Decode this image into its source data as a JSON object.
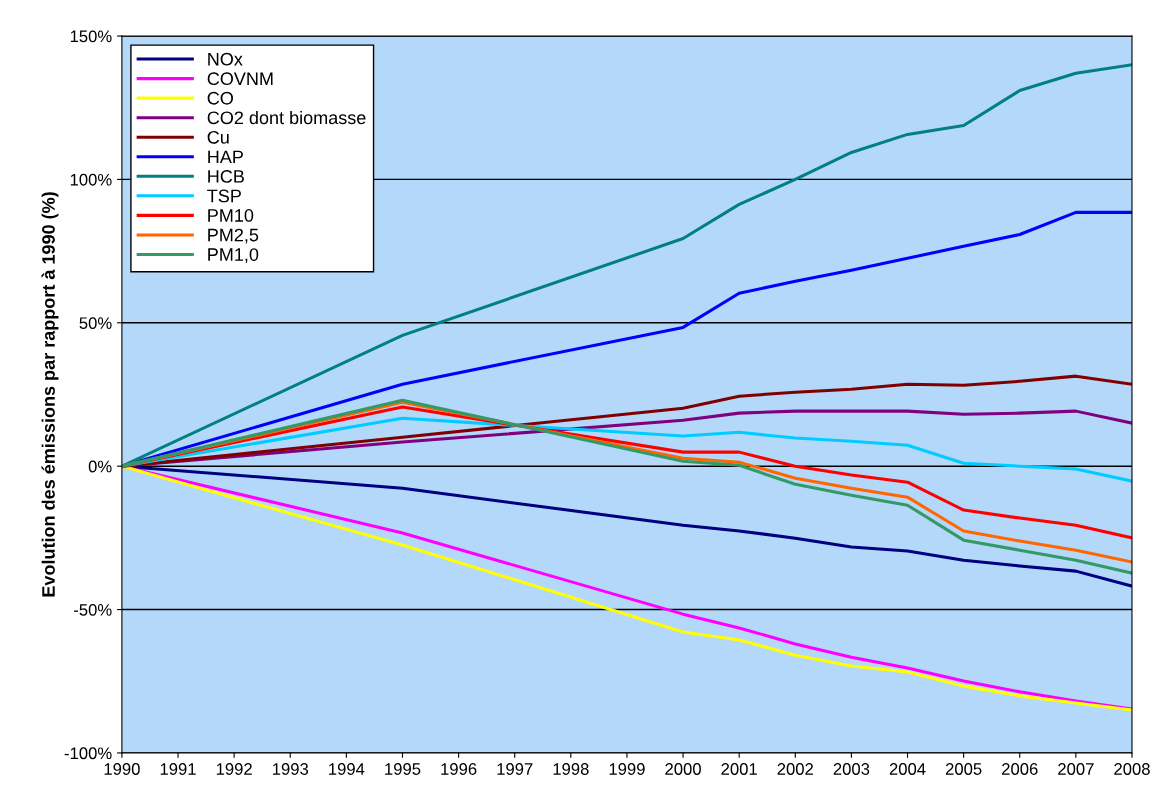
{
  "chart_data": {
    "type": "line",
    "ylabel": "Evolution des émissions par rapport à 1990 (%)",
    "x": [
      1990,
      1995,
      2000,
      2001,
      2002,
      2003,
      2004,
      2005,
      2006,
      2007,
      2008
    ],
    "xlim": [
      1990,
      2008
    ],
    "xticks": [
      1990,
      1991,
      1992,
      1993,
      1994,
      1995,
      1996,
      1997,
      1998,
      1999,
      2000,
      2001,
      2002,
      2003,
      2004,
      2005,
      2006,
      2007,
      2008
    ],
    "ylim": [
      -100,
      150
    ],
    "yticks": [
      {
        "value": -100,
        "label": "-100%"
      },
      {
        "value": -50,
        "label": "-50%"
      },
      {
        "value": 0,
        "label": "0%"
      },
      {
        "value": 50,
        "label": "50%"
      },
      {
        "value": 100,
        "label": "100%"
      },
      {
        "value": 150,
        "label": "150%"
      }
    ],
    "grid": "y",
    "legend": "top left",
    "marker": "none",
    "line_style": "solid",
    "series": [
      {
        "name": "NOx",
        "color": "#000080",
        "values": [
          0,
          -7.7,
          -20.6,
          -22.6,
          -25.1,
          -28.2,
          -29.6,
          -32.8,
          -34.8,
          -36.6,
          -41.8
        ]
      },
      {
        "name": "COVNM",
        "color": "#ff00ff",
        "values": [
          0,
          -23.3,
          -51.6,
          -56.4,
          -62,
          -66.6,
          -70.4,
          -74.9,
          -78.7,
          -81.9,
          -84.7
        ]
      },
      {
        "name": "CO",
        "color": "#ffff00",
        "values": [
          0,
          -27.5,
          -57.8,
          -60.6,
          -65.9,
          -69.7,
          -71.8,
          -76.7,
          -80.1,
          -82.6,
          -85
        ]
      },
      {
        "name": "CO2 dont biomasse",
        "color": "#800080",
        "values": [
          0,
          8.4,
          16,
          18.5,
          19.2,
          19.2,
          19.2,
          18.1,
          18.5,
          19.2,
          15
        ]
      },
      {
        "name": "Cu",
        "color": "#800000",
        "values": [
          0,
          10.1,
          20.2,
          24.4,
          25.8,
          26.8,
          28.6,
          28.2,
          29.6,
          31.4,
          28.6
        ]
      },
      {
        "name": "HAP",
        "color": "#0000ff",
        "values": [
          0,
          28.6,
          48.4,
          60.3,
          64.5,
          68.3,
          72.5,
          76.7,
          80.8,
          88.5,
          88.5
        ]
      },
      {
        "name": "HCB",
        "color": "#008080",
        "values": [
          0,
          45.6,
          79.4,
          91.3,
          100,
          109.4,
          115.7,
          118.8,
          131,
          137,
          140
        ]
      },
      {
        "name": "TSP",
        "color": "#00ccff",
        "values": [
          0,
          16.7,
          10.5,
          11.8,
          9.8,
          8.7,
          7.3,
          1,
          0,
          -1,
          -5.2
        ]
      },
      {
        "name": "PM10",
        "color": "#ff0000",
        "values": [
          0,
          20.6,
          4.9,
          4.9,
          0,
          -3.1,
          -5.6,
          -15.3,
          -18.1,
          -20.6,
          -25
        ]
      },
      {
        "name": "PM2,5",
        "color": "#ff6600",
        "values": [
          0,
          22.3,
          2.8,
          1.4,
          -4.2,
          -7.7,
          -10.8,
          -22.6,
          -26.1,
          -29.3,
          -33.4
        ]
      },
      {
        "name": "PM1,0",
        "color": "#339966",
        "values": [
          0,
          23,
          1.7,
          0.3,
          -6.3,
          -10.1,
          -13.6,
          -25.8,
          -29.3,
          -32.8,
          -37.3
        ]
      }
    ]
  }
}
